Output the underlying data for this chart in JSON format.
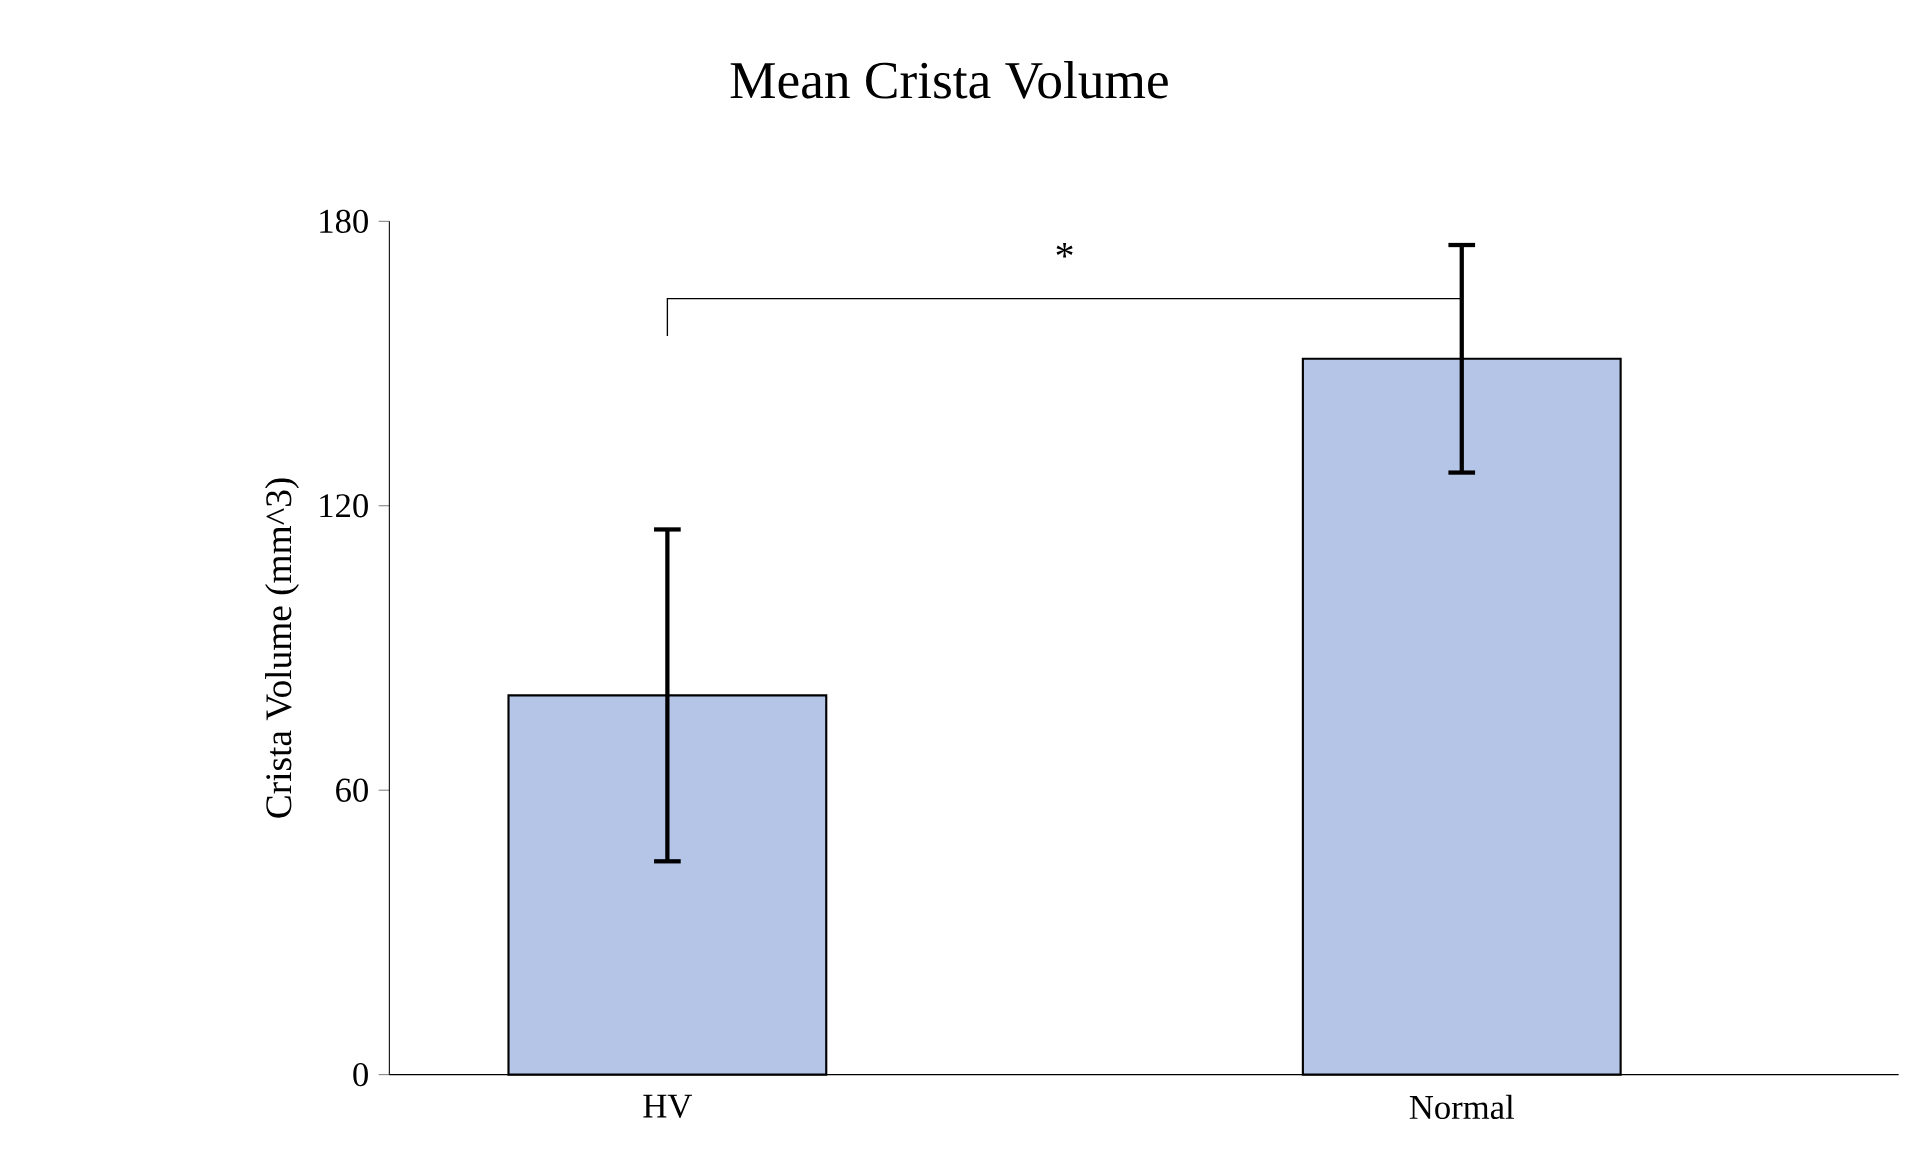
{
  "chart_data": {
    "type": "bar",
    "title": "Mean Crista Volume",
    "ylabel": "Crista Volume (mm^3)",
    "categories": [
      "HV",
      "Normal"
    ],
    "values": [
      80,
      151
    ],
    "errors": [
      35,
      24
    ],
    "color": "#b4c5e8",
    "ylim": [
      0,
      180
    ],
    "yticks": [
      0,
      60,
      120,
      180
    ],
    "grid": false,
    "annotations": [
      "*"
    ]
  }
}
